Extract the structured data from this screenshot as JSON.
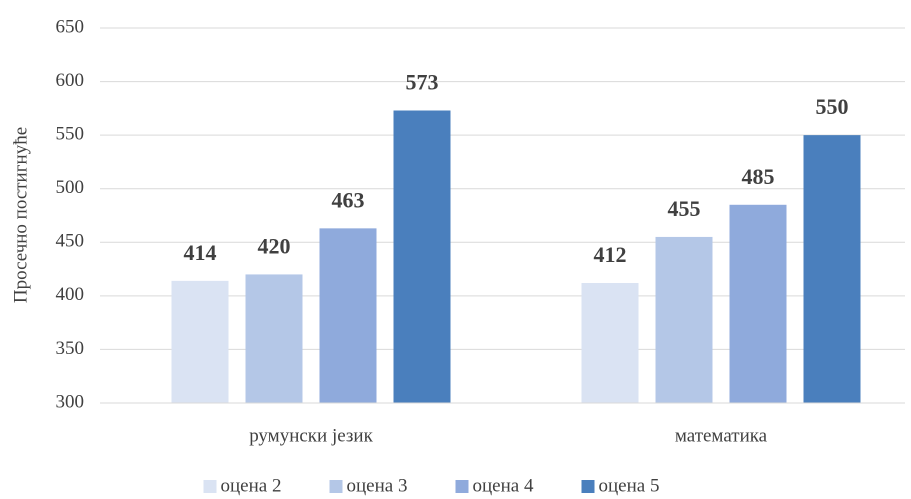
{
  "chart_data": {
    "type": "bar",
    "y_label": "Просечно постигнуће",
    "categories": [
      "румунски језик",
      "математика"
    ],
    "series": [
      {
        "name": "оцена 2",
        "color": "#dae3f3",
        "values": [
          414,
          412
        ]
      },
      {
        "name": "оцена 3",
        "color": "#b4c7e7",
        "values": [
          420,
          455
        ]
      },
      {
        "name": "оцена 4",
        "color": "#8faadc",
        "values": [
          463,
          485
        ]
      },
      {
        "name": "оцена 5",
        "color": "#4a7fbd",
        "values": [
          573,
          550
        ]
      }
    ],
    "ylim": [
      300,
      650
    ],
    "yticks": [
      300,
      350,
      400,
      450,
      500,
      550,
      600,
      650
    ],
    "grid": true,
    "legend": "bottom"
  }
}
